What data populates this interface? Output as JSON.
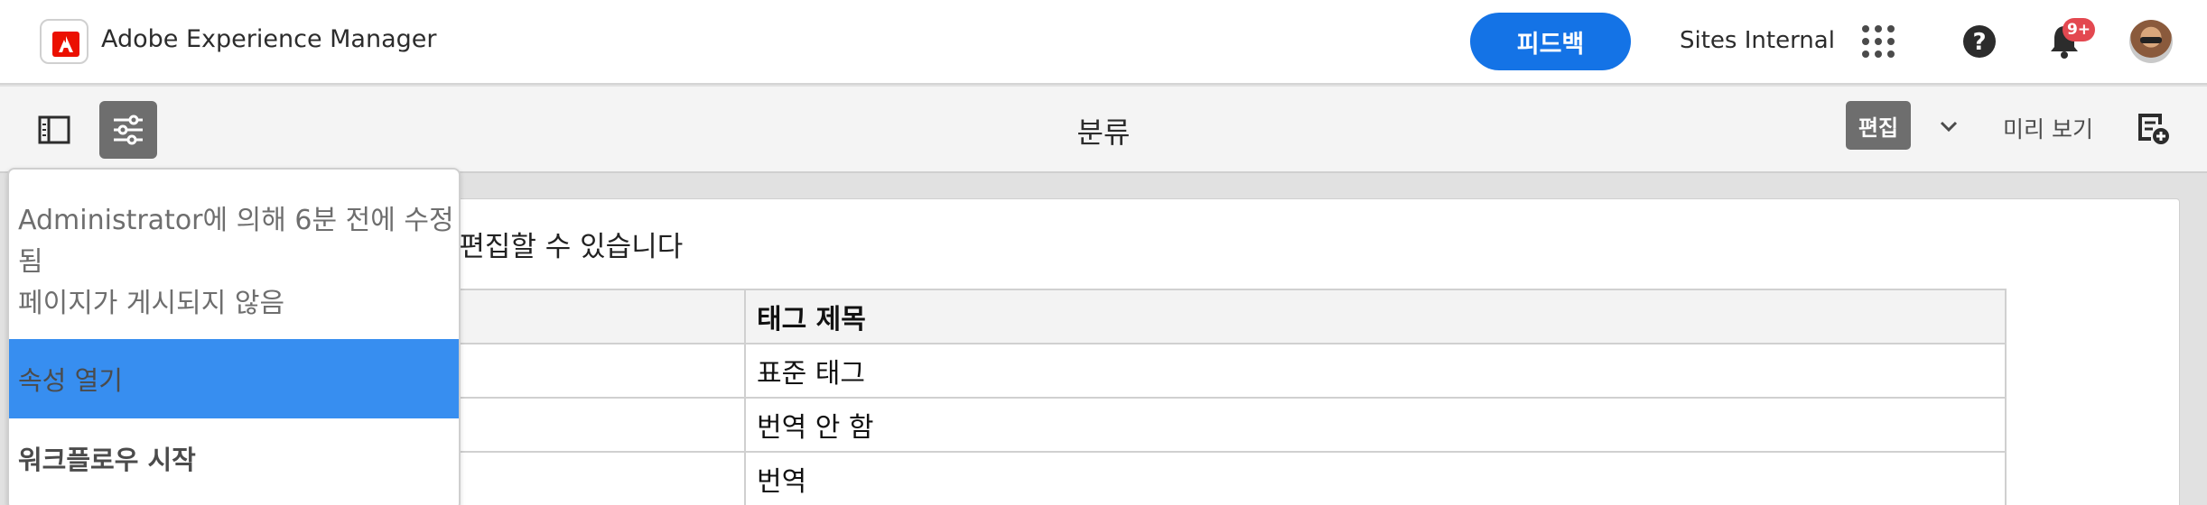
{
  "shell": {
    "app_title": "Adobe Experience Manager",
    "feedback_label": "피드백",
    "org_name": "Sites Internal",
    "notifications_badge": "9+",
    "icons": [
      "adobe-logo",
      "apps-grid-icon",
      "help-icon",
      "bell-icon",
      "user-avatar"
    ]
  },
  "toolbar": {
    "page_title": "분류",
    "edit_label": "편집",
    "preview_label": "미리 보기",
    "icons": [
      "side-panel-toggle-icon",
      "page-information-icon",
      "chevron-down-icon",
      "annotate-icon"
    ]
  },
  "popover": {
    "modified_line1": "Administrator에 의해 6분 전에 수정",
    "modified_line2": "됨",
    "published_status": "페이지가 게시되지 않음",
    "items": [
      {
        "label": "속성 열기",
        "selected": true
      },
      {
        "label": "워크플로우 시작",
        "selected": false
      }
    ]
  },
  "content": {
    "intro_text": "서 편집할 수 있습니다",
    "table": {
      "headers": [
        "",
        "태그 제목"
      ],
      "rows": [
        [
          "",
          "표준 태그"
        ],
        [
          "",
          "번역 안 함"
        ],
        [
          "",
          "번역"
        ]
      ]
    }
  },
  "colors": {
    "accent": "#1473e6",
    "selected_item": "#378ef0",
    "active_tool": "#6e6e6e",
    "badge": "#e34850"
  }
}
